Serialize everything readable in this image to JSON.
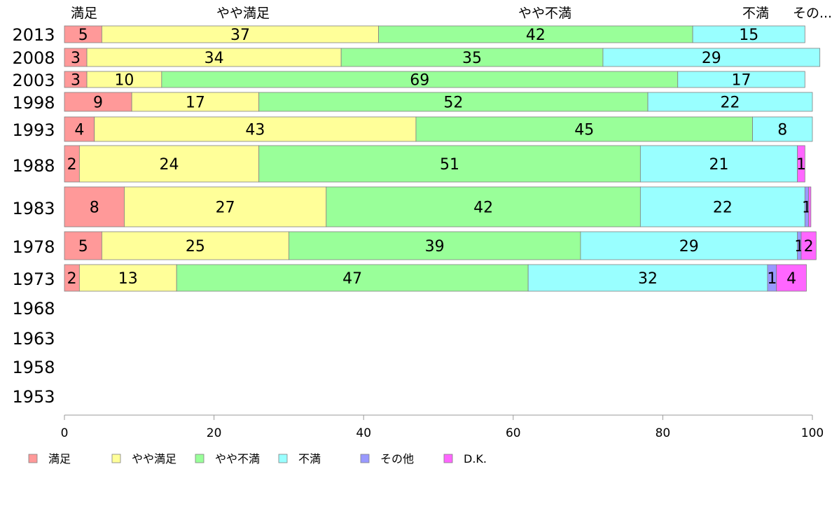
{
  "chart_data": {
    "type": "bar",
    "orientation": "horizontal",
    "stacked": true,
    "title": "",
    "xlabel": "",
    "ylabel": "",
    "xlim": [
      0,
      100
    ],
    "xticks": [
      0,
      20,
      40,
      60,
      80,
      100
    ],
    "grid": false,
    "legend_position": "bottom",
    "top_category_labels": [
      "満足",
      "やや満足",
      "やや不満",
      "不満",
      "その..."
    ],
    "categories": [
      "2013",
      "2008",
      "2003",
      "1998",
      "1993",
      "1988",
      "1983",
      "1978",
      "1973",
      "1968",
      "1963",
      "1958",
      "1953"
    ],
    "series": [
      {
        "name": "満足",
        "color": "#ff9999",
        "values": [
          5,
          3,
          3,
          9,
          4,
          2,
          8,
          5,
          2,
          null,
          null,
          null,
          null
        ]
      },
      {
        "name": "やや満足",
        "color": "#ffff99",
        "values": [
          37,
          34,
          10,
          17,
          43,
          24,
          27,
          25,
          13,
          null,
          null,
          null,
          null
        ]
      },
      {
        "name": "やや不満",
        "color": "#99ff99",
        "values": [
          42,
          35,
          69,
          52,
          45,
          51,
          42,
          39,
          47,
          null,
          null,
          null,
          null
        ]
      },
      {
        "name": "不満",
        "color": "#99ffff",
        "values": [
          15,
          29,
          17,
          22,
          8,
          21,
          22,
          29,
          32,
          null,
          null,
          null,
          null
        ]
      },
      {
        "name": "その他",
        "color": "#9999ff",
        "values": [
          0,
          0,
          0,
          0,
          0,
          0,
          0.5,
          0.5,
          1.2,
          null,
          null,
          null,
          null
        ]
      },
      {
        "name": "D.K.",
        "color": "#ff66ff",
        "values": [
          0,
          0,
          0,
          0,
          0,
          1,
          0.3,
          2,
          4,
          null,
          null,
          null,
          null
        ]
      }
    ],
    "data_labels": {
      "2013": [
        "5",
        "37",
        "42",
        "15",
        "",
        ""
      ],
      "2008": [
        "3",
        "34",
        "35",
        "29",
        "",
        ""
      ],
      "2003": [
        "3",
        "10",
        "69",
        "17",
        "",
        ""
      ],
      "1998": [
        "9",
        "17",
        "52",
        "22",
        "",
        ""
      ],
      "1993": [
        "4",
        "43",
        "45",
        "8",
        "",
        ""
      ],
      "1988": [
        "2",
        "24",
        "51",
        "21",
        "",
        "1"
      ],
      "1983": [
        "8",
        "27",
        "42",
        "22",
        "1",
        ""
      ],
      "1978": [
        "5",
        "25",
        "39",
        "29",
        "1",
        "2"
      ],
      "1973": [
        "2",
        "13",
        "47",
        "32",
        "1",
        "4"
      ]
    }
  }
}
